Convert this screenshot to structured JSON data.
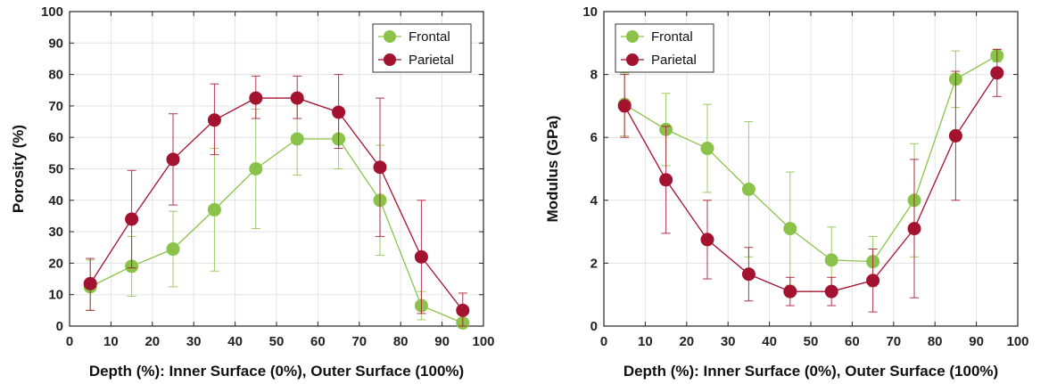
{
  "chart_data": [
    {
      "type": "line",
      "xlabel": "Depth (%): Inner Surface (0%), Outer Surface (100%)",
      "ylabel": "Porosity (%)",
      "xlim": [
        0,
        100
      ],
      "ylim": [
        0,
        100
      ],
      "xticks": [
        "0",
        "10",
        "20",
        "30",
        "40",
        "50",
        "60",
        "70",
        "80",
        "90",
        "100"
      ],
      "yticks": [
        "0",
        "10",
        "20",
        "30",
        "40",
        "50",
        "60",
        "70",
        "80",
        "90",
        "100"
      ],
      "grid": true,
      "legend_position": "top-right",
      "x": [
        5,
        15,
        25,
        35,
        45,
        55,
        65,
        75,
        85,
        95
      ],
      "series": [
        {
          "name": "Frontal",
          "color": "#8bc34a",
          "values": [
            12.5,
            19,
            24.5,
            37,
            50,
            59.5,
            59.5,
            40,
            6.5,
            1
          ],
          "err_low": [
            7.5,
            9.5,
            12,
            19.5,
            19,
            11.5,
            9.5,
            17.5,
            4.5,
            1
          ],
          "err_high": [
            8.5,
            9.5,
            12,
            19.5,
            19,
            11.5,
            9.5,
            17.5,
            4.5,
            1
          ]
        },
        {
          "name": "Parietal",
          "color": "#a3122f",
          "values": [
            13.5,
            34,
            53,
            65.5,
            72.5,
            72.5,
            68,
            50.5,
            22,
            5
          ],
          "err_low": [
            8.5,
            15.5,
            14.5,
            11,
            6.5,
            6.5,
            11.5,
            22,
            18,
            5
          ],
          "err_high": [
            8,
            15.5,
            14.5,
            11.5,
            7,
            7,
            12,
            22,
            18,
            5.5
          ]
        }
      ]
    },
    {
      "type": "line",
      "xlabel": "Depth (%): Inner Surface (0%), Outer Surface (100%)",
      "ylabel": "Modulus (GPa)",
      "xlim": [
        0,
        100
      ],
      "ylim": [
        0,
        10
      ],
      "xticks": [
        "0",
        "10",
        "20",
        "30",
        "40",
        "50",
        "60",
        "70",
        "80",
        "90",
        "100"
      ],
      "yticks": [
        "0",
        "2",
        "4",
        "6",
        "8",
        "10"
      ],
      "grid": true,
      "legend_position": "top-left",
      "x": [
        5,
        15,
        25,
        35,
        45,
        55,
        65,
        75,
        85,
        95
      ],
      "series": [
        {
          "name": "Frontal",
          "color": "#8bc34a",
          "values": [
            7.05,
            6.25,
            5.65,
            4.35,
            3.1,
            2.1,
            2.05,
            4.0,
            7.85,
            8.6
          ],
          "err_low": [
            1.0,
            1.15,
            1.4,
            2.15,
            1.8,
            1.05,
            0.8,
            1.8,
            0.9,
            0.2
          ],
          "err_high": [
            1.0,
            1.15,
            1.4,
            2.15,
            1.8,
            1.05,
            0.8,
            1.8,
            0.9,
            0.2
          ]
        },
        {
          "name": "Parietal",
          "color": "#a3122f",
          "values": [
            7.0,
            4.65,
            2.75,
            1.65,
            1.1,
            1.1,
            1.45,
            3.1,
            6.05,
            8.05
          ],
          "err_low": [
            1.0,
            1.7,
            1.25,
            0.85,
            0.45,
            0.45,
            1.0,
            2.2,
            2.05,
            0.75
          ],
          "err_high": [
            1.0,
            1.7,
            1.25,
            0.85,
            0.45,
            0.45,
            1.0,
            2.2,
            2.05,
            0.75
          ]
        }
      ]
    }
  ]
}
